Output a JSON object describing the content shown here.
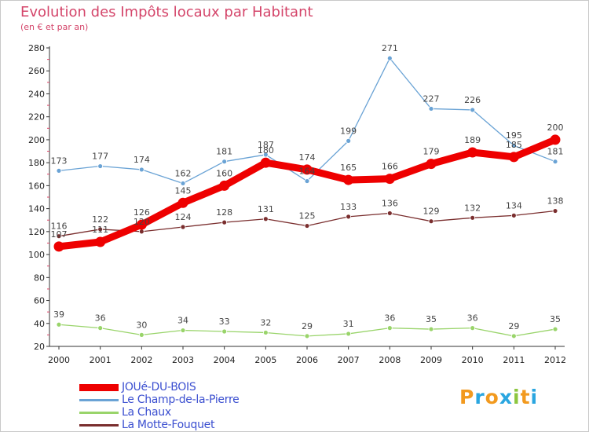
{
  "title": "Evolution des Impôts locaux par Habitant",
  "subtitle": "(en € et par an)",
  "chart_data": {
    "type": "line",
    "title": "Evolution des Impôts locaux par Habitant",
    "ylabel": "(en € et par an)",
    "xlabel": "",
    "categories": [
      "2000",
      "2001",
      "2002",
      "2003",
      "2004",
      "2005",
      "2006",
      "2007",
      "2008",
      "2009",
      "2010",
      "2011",
      "2012"
    ],
    "yticks": [
      "20",
      "40",
      "60",
      "80",
      "100",
      "120",
      "140",
      "160",
      "180",
      "200",
      "220",
      "240",
      "260",
      "280"
    ],
    "ylim": [
      20,
      280
    ],
    "grid": false,
    "legend_position": "bottom-left",
    "series": [
      {
        "name": "JOUé-DU-BOIS",
        "color": "#ee0000",
        "values": [
          107,
          111,
          126,
          145,
          160,
          180,
          174,
          165,
          166,
          179,
          189,
          185,
          200
        ],
        "labels": [
          "107",
          "111",
          "126",
          "145",
          "160",
          "180",
          "174",
          "165",
          "166",
          "179",
          "189",
          "185",
          "200"
        ]
      },
      {
        "name": "Le Champ-de-la-Pierre",
        "color": "#6aa3d5",
        "values": [
          173,
          177,
          174,
          162,
          181,
          187,
          164,
          199,
          271,
          227,
          226,
          195,
          181
        ],
        "labels": [
          "173",
          "177",
          "174",
          "162",
          "181",
          "187",
          "164",
          "199",
          "271",
          "227",
          "226",
          "195",
          "181"
        ]
      },
      {
        "name": "La Chaux",
        "color": "#99d46a",
        "values": [
          39,
          36,
          30,
          34,
          33,
          32,
          29,
          31,
          36,
          35,
          36,
          29,
          35
        ],
        "labels": [
          "39",
          "36",
          "30",
          "34",
          "33",
          "32",
          "29",
          "31",
          "36",
          "35",
          "36",
          "29",
          "35"
        ]
      },
      {
        "name": "La Motte-Fouquet",
        "color": "#7a2e2e",
        "values": [
          116,
          122,
          120,
          124,
          128,
          131,
          125,
          133,
          136,
          129,
          132,
          134,
          138
        ],
        "labels": [
          "116",
          "122",
          "120",
          "124",
          "128",
          "131",
          "125",
          "133",
          "136",
          "129",
          "132",
          "134",
          "138"
        ]
      }
    ]
  },
  "logo": {
    "letters": [
      "P",
      "r",
      "o",
      "x",
      "i",
      "t",
      "i"
    ],
    "colors": [
      "#f29a1f",
      "#2aa6e0",
      "#f29a1f",
      "#2aa6e0",
      "#8cc63f",
      "#f29a1f",
      "#2aa6e0"
    ]
  }
}
